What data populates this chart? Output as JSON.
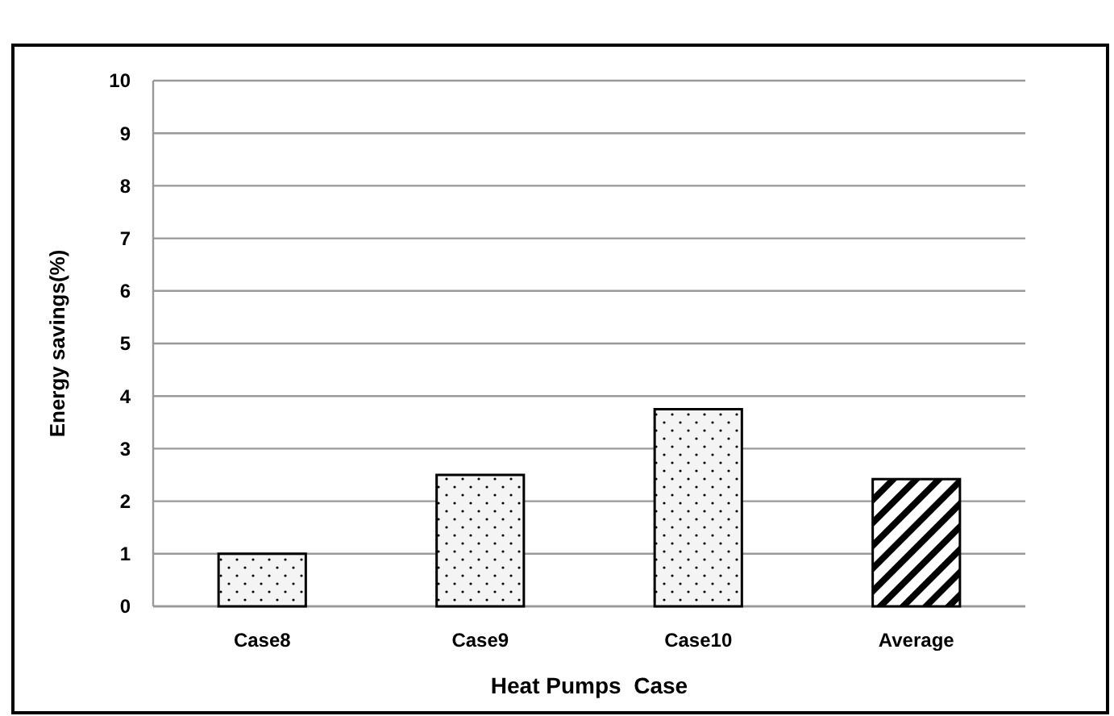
{
  "chart_data": {
    "type": "bar",
    "xlabel": "Heat Pumps  Case",
    "ylabel": "Energy savings(%)",
    "categories": [
      "Case8",
      "Case9",
      "Case10",
      "Average"
    ],
    "series": [
      {
        "color": "#000000",
        "values": [
          1.0,
          2.5,
          3.75,
          null
        ]
      },
      {
        "color": "#000000",
        "values": [
          null,
          null,
          null,
          2.42
        ]
      }
    ],
    "stacked": true,
    "ylim": [
      0,
      10
    ],
    "yticks": [
      0,
      1,
      2,
      3,
      4,
      5,
      6,
      7,
      8,
      9,
      10
    ],
    "grid": "y"
  }
}
